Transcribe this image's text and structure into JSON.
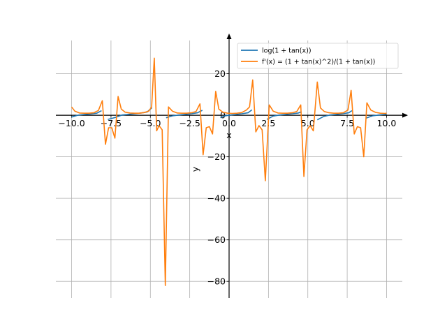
{
  "chart_data": {
    "type": "line",
    "xlabel": "x",
    "ylabel": "y",
    "xlim": [
      -11,
      11
    ],
    "ylim": [
      -88,
      36
    ],
    "xticks": [
      -10.0,
      -7.5,
      -5.0,
      -2.5,
      0.0,
      2.5,
      5.0,
      7.5,
      10.0
    ],
    "xtick_labels": [
      "−10.0",
      "−7.5",
      "−5.0",
      "−2.5",
      "0.0",
      "2.5",
      "5.0",
      "7.5",
      "10.0"
    ],
    "yticks": [
      -80,
      -60,
      -40,
      -20,
      0,
      20
    ],
    "ytick_labels": [
      "−80",
      "−60",
      "−40",
      "−20",
      "0",
      "20"
    ],
    "grid": true,
    "legend_position": "top-right",
    "series": [
      {
        "name": "log(1 + tan(x))",
        "color": "#1f77b4",
        "segments": [
          [
            [
              -10.0,
              -0.85
            ],
            [
              -9.6,
              0.05
            ],
            [
              -9.2,
              0.35
            ],
            [
              -8.8,
              0.6
            ],
            [
              -8.4,
              1.0
            ],
            [
              -8.1,
              2.2
            ]
          ],
          [
            [
              -7.7,
              -2.0
            ],
            [
              -7.2,
              -1.0
            ],
            [
              -6.8,
              0.1
            ],
            [
              -6.4,
              0.4
            ],
            [
              -6.0,
              0.7
            ],
            [
              -5.6,
              1.1
            ],
            [
              -5.2,
              1.6
            ],
            [
              -4.9,
              3.6
            ]
          ],
          [
            [
              -4.0,
              -1.2
            ],
            [
              -3.6,
              -0.3
            ],
            [
              -3.2,
              0.1
            ],
            [
              -2.8,
              0.4
            ],
            [
              -2.4,
              0.7
            ],
            [
              -2.0,
              1.2
            ],
            [
              -1.7,
              2.4
            ]
          ],
          [
            [
              -0.55,
              -1.2
            ],
            [
              -0.3,
              -0.35
            ],
            [
              0.0,
              0.0
            ],
            [
              0.4,
              0.35
            ],
            [
              0.8,
              0.7
            ],
            [
              1.2,
              1.2
            ],
            [
              1.45,
              2.6
            ]
          ],
          [
            [
              2.4,
              -2.0
            ],
            [
              2.8,
              -0.4
            ],
            [
              3.2,
              0.1
            ],
            [
              3.6,
              0.4
            ],
            [
              4.0,
              0.7
            ],
            [
              4.4,
              1.1
            ],
            [
              4.6,
              1.7
            ]
          ],
          [
            [
              5.6,
              -2.2
            ],
            [
              6.0,
              -0.6
            ],
            [
              6.4,
              0.1
            ],
            [
              6.8,
              0.4
            ],
            [
              7.2,
              0.7
            ],
            [
              7.6,
              1.2
            ],
            [
              7.8,
              2.2
            ]
          ],
          [
            [
              8.7,
              -1.4
            ],
            [
              9.1,
              -0.3
            ],
            [
              9.5,
              0.1
            ],
            [
              9.9,
              0.4
            ],
            [
              10.0,
              0.5
            ]
          ]
        ]
      },
      {
        "name": "f'(x) = (1 + tan(x)^2)/(1 + tan(x))",
        "color": "#ff7f0e",
        "points": [
          [
            -10.0,
            4.0
          ],
          [
            -9.8,
            2.0
          ],
          [
            -9.5,
            1.1
          ],
          [
            -9.2,
            1.0
          ],
          [
            -8.9,
            1.0
          ],
          [
            -8.6,
            1.2
          ],
          [
            -8.3,
            2.3
          ],
          [
            -8.05,
            7.0
          ],
          [
            -7.85,
            -14.0
          ],
          [
            -7.65,
            -6.0
          ],
          [
            -7.45,
            -6.0
          ],
          [
            -7.25,
            -11.0
          ],
          [
            -7.05,
            9.0
          ],
          [
            -6.85,
            3.0
          ],
          [
            -6.6,
            1.5
          ],
          [
            -6.3,
            1.1
          ],
          [
            -6.0,
            1.0
          ],
          [
            -5.7,
            1.0
          ],
          [
            -5.4,
            1.3
          ],
          [
            -5.1,
            2.0
          ],
          [
            -4.92,
            4.0
          ],
          [
            -4.75,
            27.5
          ],
          [
            -4.6,
            -7.5
          ],
          [
            -4.45,
            -5.0
          ],
          [
            -4.25,
            -7.0
          ],
          [
            -4.05,
            -82.0
          ],
          [
            -3.85,
            4.0
          ],
          [
            -3.6,
            2.0
          ],
          [
            -3.3,
            1.1
          ],
          [
            -3.0,
            1.0
          ],
          [
            -2.7,
            1.0
          ],
          [
            -2.4,
            1.2
          ],
          [
            -2.1,
            1.8
          ],
          [
            -1.85,
            5.5
          ],
          [
            -1.65,
            -19.0
          ],
          [
            -1.45,
            -6.0
          ],
          [
            -1.25,
            -5.5
          ],
          [
            -1.05,
            -9.0
          ],
          [
            -0.85,
            11.5
          ],
          [
            -0.65,
            3.0
          ],
          [
            -0.4,
            1.5
          ],
          [
            -0.1,
            1.0
          ],
          [
            0.2,
            0.9
          ],
          [
            0.5,
            1.0
          ],
          [
            0.8,
            1.3
          ],
          [
            1.1,
            2.5
          ],
          [
            1.3,
            4.0
          ],
          [
            1.5,
            17.0
          ],
          [
            1.7,
            -8.0
          ],
          [
            1.9,
            -5.0
          ],
          [
            2.1,
            -7.0
          ],
          [
            2.3,
            -31.5
          ],
          [
            2.55,
            5.0
          ],
          [
            2.8,
            2.0
          ],
          [
            3.1,
            1.1
          ],
          [
            3.4,
            1.0
          ],
          [
            3.7,
            1.0
          ],
          [
            4.0,
            1.2
          ],
          [
            4.3,
            1.8
          ],
          [
            4.55,
            5.0
          ],
          [
            4.75,
            -29.5
          ],
          [
            4.95,
            -7.0
          ],
          [
            5.15,
            -5.0
          ],
          [
            5.35,
            -7.5
          ],
          [
            5.6,
            16.0
          ],
          [
            5.8,
            3.5
          ],
          [
            6.05,
            1.8
          ],
          [
            6.35,
            1.2
          ],
          [
            6.65,
            1.0
          ],
          [
            6.95,
            1.0
          ],
          [
            7.25,
            1.2
          ],
          [
            7.55,
            2.5
          ],
          [
            7.75,
            12.0
          ],
          [
            7.95,
            -9.0
          ],
          [
            8.15,
            -5.5
          ],
          [
            8.35,
            -6.0
          ],
          [
            8.55,
            -20.0
          ],
          [
            8.75,
            6.0
          ],
          [
            9.0,
            2.5
          ],
          [
            9.3,
            1.4
          ],
          [
            9.6,
            1.0
          ],
          [
            9.9,
            0.9
          ],
          [
            10.0,
            1.0
          ]
        ]
      }
    ]
  }
}
